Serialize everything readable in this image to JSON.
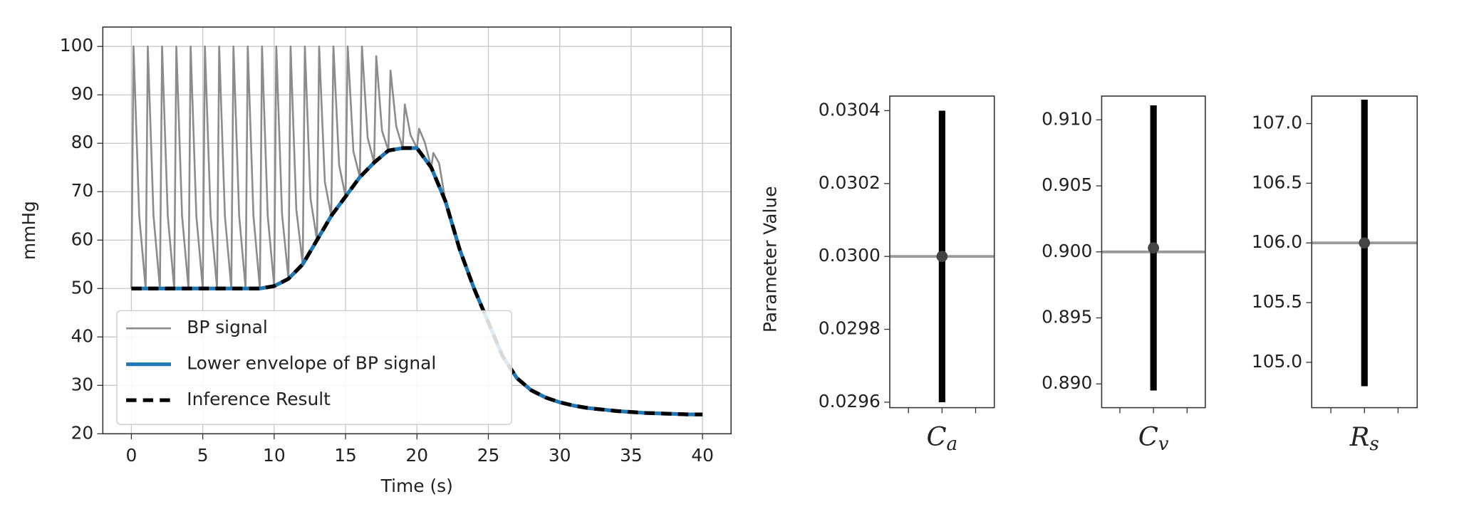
{
  "chart_data": [
    {
      "type": "line",
      "xlabel": "Time (s)",
      "ylabel": "mmHg",
      "xlim": [
        -2,
        42
      ],
      "ylim": [
        20,
        104
      ],
      "xticks": [
        0,
        5,
        10,
        15,
        20,
        25,
        30,
        35,
        40
      ],
      "yticks": [
        20,
        30,
        40,
        50,
        60,
        70,
        80,
        90,
        100
      ],
      "grid": true,
      "legend": "lower left",
      "series": [
        {
          "name": "BP signal",
          "color": "#8c8c8c",
          "x": [
            0,
            0.15,
            0.55,
            1,
            1.15,
            1.55,
            2,
            2.15,
            2.55,
            3,
            3.15,
            3.55,
            4,
            4.15,
            4.55,
            5,
            5.15,
            5.55,
            6,
            6.15,
            6.55,
            7,
            7.15,
            7.55,
            8,
            8.15,
            8.55,
            9,
            9.15,
            9.55,
            10,
            10.15,
            10.55,
            11,
            11.15,
            11.55,
            12,
            12.15,
            12.55,
            13,
            13.15,
            13.55,
            14,
            14.15,
            14.55,
            15,
            15.15,
            15.55,
            16,
            16.15,
            16.55,
            17,
            17.15,
            17.55,
            18,
            18.15,
            18.55,
            19,
            19.15,
            19.55,
            20,
            20.15,
            20.55,
            21,
            21.15,
            21.55,
            22,
            23,
            24,
            25,
            26,
            27,
            28,
            29,
            30,
            31,
            32,
            33,
            34,
            35,
            36,
            37,
            38,
            39,
            40
          ],
          "values": [
            50,
            100,
            65,
            50,
            100,
            65,
            50,
            100,
            65,
            50,
            100,
            65,
            50,
            100,
            65,
            50,
            100,
            65,
            50,
            100,
            65,
            50,
            100,
            65,
            50,
            100,
            65,
            50,
            100,
            65,
            50.5,
            100,
            65.4,
            52,
            100,
            66.4,
            55,
            100,
            68.5,
            60,
            100,
            72,
            65,
            100,
            75.5,
            69,
            100,
            78.3,
            73,
            100,
            81.1,
            76,
            98,
            82.6,
            78.5,
            95,
            83.5,
            79,
            88,
            81.7,
            79,
            83,
            80.2,
            75,
            78,
            75.9,
            68,
            58,
            50,
            43,
            36,
            31.5,
            29,
            27.5,
            26.5,
            25.8,
            25.3,
            25,
            24.7,
            24.5,
            24.3,
            24.2,
            24.1,
            24,
            24
          ]
        },
        {
          "name": "Lower envelope of BP signal",
          "color": "#1f77b4",
          "x": [
            0,
            1,
            2,
            3,
            4,
            5,
            6,
            7,
            8,
            9,
            10,
            11,
            12,
            13,
            14,
            15,
            16,
            17,
            18,
            19,
            20,
            21,
            22,
            23,
            24,
            25,
            26,
            27,
            28,
            29,
            30,
            31,
            32,
            33,
            34,
            35,
            36,
            37,
            38,
            39,
            40
          ],
          "values": [
            50,
            50,
            50,
            50,
            50,
            50,
            50,
            50,
            50,
            50,
            50.5,
            52,
            55,
            60,
            65,
            69,
            73,
            76,
            78.5,
            79,
            79,
            75,
            68,
            58,
            50,
            43,
            36,
            31.5,
            29,
            27.5,
            26.5,
            25.8,
            25.3,
            25,
            24.7,
            24.5,
            24.3,
            24.2,
            24.1,
            24,
            24
          ]
        },
        {
          "name": "Inference Result",
          "color": "#000000",
          "dashed": true,
          "x": [
            0,
            1,
            2,
            3,
            4,
            5,
            6,
            7,
            8,
            9,
            10,
            11,
            12,
            13,
            14,
            15,
            16,
            17,
            18,
            19,
            20,
            21,
            22,
            23,
            24,
            25,
            26,
            27,
            28,
            29,
            30,
            31,
            32,
            33,
            34,
            35,
            36,
            37,
            38,
            39,
            40
          ],
          "values": [
            50,
            50,
            50,
            50,
            50,
            50,
            50,
            50,
            50,
            50,
            50.5,
            52,
            55,
            60,
            65,
            69,
            73,
            76,
            78.5,
            79,
            79,
            75,
            68,
            58,
            50,
            43,
            36,
            31.5,
            29,
            27.5,
            26.5,
            25.8,
            25.3,
            25,
            24.7,
            24.5,
            24.3,
            24.2,
            24.1,
            24,
            24
          ]
        }
      ]
    },
    {
      "type": "errorbar",
      "ylabel": "Parameter Value",
      "x_label": {
        "symbol": "C",
        "subscript": "a"
      },
      "ylim": [
        0.029585,
        0.03044
      ],
      "yticks": [
        {
          "value": 0.0296,
          "label": "0.0296"
        },
        0.0298,
        {
          "value": 0.03,
          "label": "0.0300"
        },
        0.0302,
        0.0304
      ],
      "values": [
        0.03
      ],
      "errors": [
        0.0004
      ],
      "reference": 0.03,
      "color": "#000000",
      "reference_color": "#9a9a9a"
    },
    {
      "type": "errorbar",
      "x_label": {
        "symbol": "C",
        "subscript": "v"
      },
      "ylim": [
        0.8882,
        0.9118
      ],
      "yticks": [
        {
          "value": 0.89,
          "label": "0.890"
        },
        0.895,
        {
          "value": 0.9,
          "label": "0.900"
        },
        0.905,
        {
          "value": 0.91,
          "label": "0.910"
        }
      ],
      "values": [
        0.9003
      ],
      "errors": [
        0.0108
      ],
      "reference": 0.9,
      "color": "#000000",
      "reference_color": "#9a9a9a"
    },
    {
      "type": "errorbar",
      "x_label": {
        "symbol": "R",
        "subscript": "s"
      },
      "ylim": [
        104.62,
        107.23
      ],
      "yticks": [
        {
          "value": 105,
          "label": "105.0"
        },
        105.5,
        {
          "value": 106,
          "label": "106.0"
        },
        106.5,
        {
          "value": 107,
          "label": "107.0"
        }
      ],
      "values": [
        106
      ],
      "errors": [
        1.2
      ],
      "reference": 106,
      "color": "#000000",
      "reference_color": "#9a9a9a"
    }
  ]
}
